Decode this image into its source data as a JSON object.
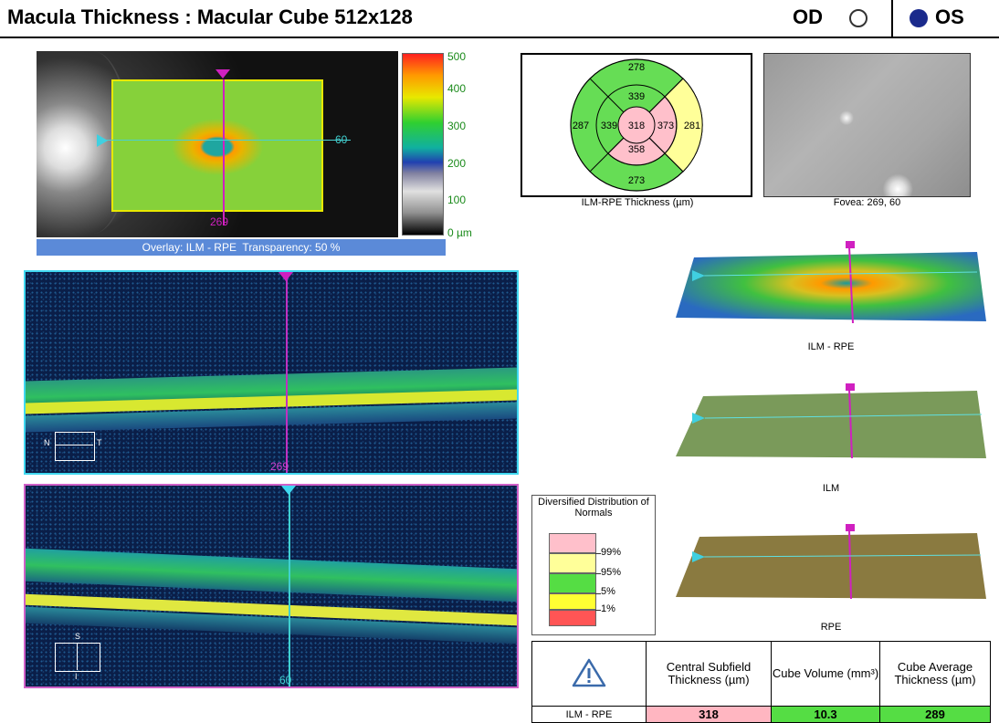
{
  "header": {
    "title": "Macula Thickness : Macular Cube 512x128",
    "od_label": "OD",
    "os_label": "OS",
    "selected_eye": "OS"
  },
  "fundus_map": {
    "x_label": "269",
    "y_label": "60",
    "colorbar_ticks": [
      "500",
      "400",
      "300",
      "200",
      "100",
      "0 µm"
    ],
    "overlay_caption": "Overlay: ILM - RPE  Transparency: 50 %"
  },
  "thickness_grid": {
    "outer_top": "278",
    "outer_left": "287",
    "outer_right": "281",
    "outer_bottom": "273",
    "inner_top": "339",
    "inner_left": "339",
    "inner_right": "373",
    "inner_bottom": "358",
    "center": "318",
    "caption": "ILM-RPE Thickness (µm)",
    "colors": {
      "normal": "#66dd55",
      "above95": "#ffff99",
      "above99": "#ffc0cb"
    }
  },
  "fovea": {
    "caption": "Fovea: 269, 60"
  },
  "bscan1": {
    "position_label": "269",
    "orient_left": "N",
    "orient_right": "T"
  },
  "bscan2": {
    "position_label": "60",
    "orient_top": "S",
    "orient_bottom": "I"
  },
  "surfaces": [
    {
      "caption": "ILM - RPE"
    },
    {
      "caption": "ILM"
    },
    {
      "caption": "RPE"
    }
  ],
  "legend": {
    "title": "Diversified Distribution of Normals",
    "labels": [
      "99%",
      "95%",
      "5%",
      "1%"
    ],
    "colors": [
      "#ffc0cb",
      "#ffff99",
      "#55dd44",
      "#ffff33",
      "#ff5555"
    ]
  },
  "summary_table": {
    "headers": [
      "Central Subfield Thickness (µm)",
      "Cube Volume (mm³)",
      "Cube Average Thickness (µm)"
    ],
    "row_label": "ILM - RPE",
    "values": [
      "318",
      "10.3",
      "289"
    ],
    "value_colors": [
      "#ffb6c1",
      "#55dd44",
      "#55dd44"
    ]
  }
}
